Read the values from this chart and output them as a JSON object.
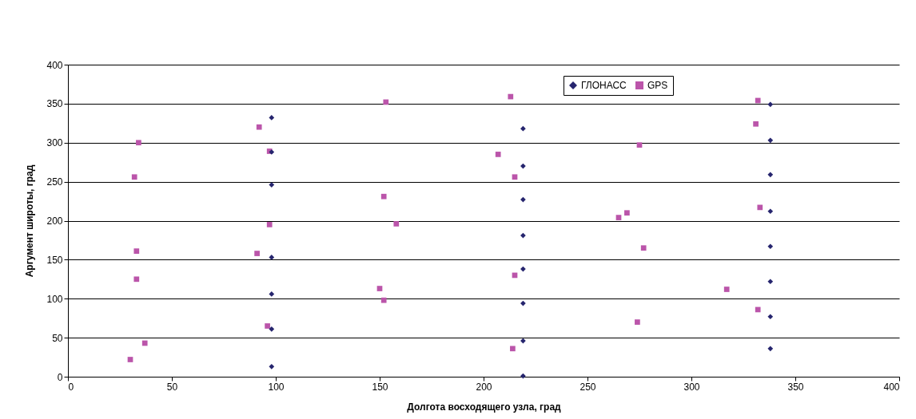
{
  "chart_data": {
    "type": "scatter",
    "xlabel": "Долгота восходящего узла, град",
    "ylabel": "Аргумент широты, град",
    "xlim": [
      0,
      400
    ],
    "xticks": [
      0,
      50,
      100,
      150,
      200,
      250,
      300,
      350,
      400
    ],
    "ylim": [
      0,
      400
    ],
    "yticks": [
      0,
      50,
      100,
      150,
      200,
      250,
      300,
      350,
      400
    ],
    "grid": "y",
    "legend": "top right",
    "series": [
      {
        "name": "ГЛОНАСС",
        "color": "#26256e",
        "marker": "diamond",
        "x": [
          98,
          98,
          98,
          98,
          98,
          98,
          98,
          219,
          219,
          219,
          219,
          219,
          219,
          219,
          219,
          338,
          338,
          338,
          338,
          338,
          338,
          338,
          338
        ],
        "values": [
          332,
          288,
          246,
          153,
          106,
          61,
          13,
          318,
          270,
          227,
          181,
          138,
          94,
          46,
          1,
          349,
          303,
          259,
          212,
          167,
          122,
          77,
          36
        ]
      },
      {
        "name": "GPS",
        "color": "#bb55aa",
        "marker": "square",
        "x": [
          30,
          37,
          33,
          33,
          32,
          34,
          92,
          97,
          97,
          91,
          96,
          153,
          152,
          158,
          150,
          152,
          213,
          207,
          215,
          215,
          214,
          275,
          269,
          265,
          277,
          274,
          317,
          332,
          331,
          333,
          332
        ],
        "values": [
          22,
          43,
          125,
          161,
          256,
          300,
          320,
          289,
          195,
          158,
          65,
          352,
          231,
          196,
          113,
          98,
          359,
          285,
          256,
          130,
          36,
          297,
          210,
          204,
          165,
          70,
          112,
          354,
          324,
          217,
          86
        ]
      }
    ]
  }
}
